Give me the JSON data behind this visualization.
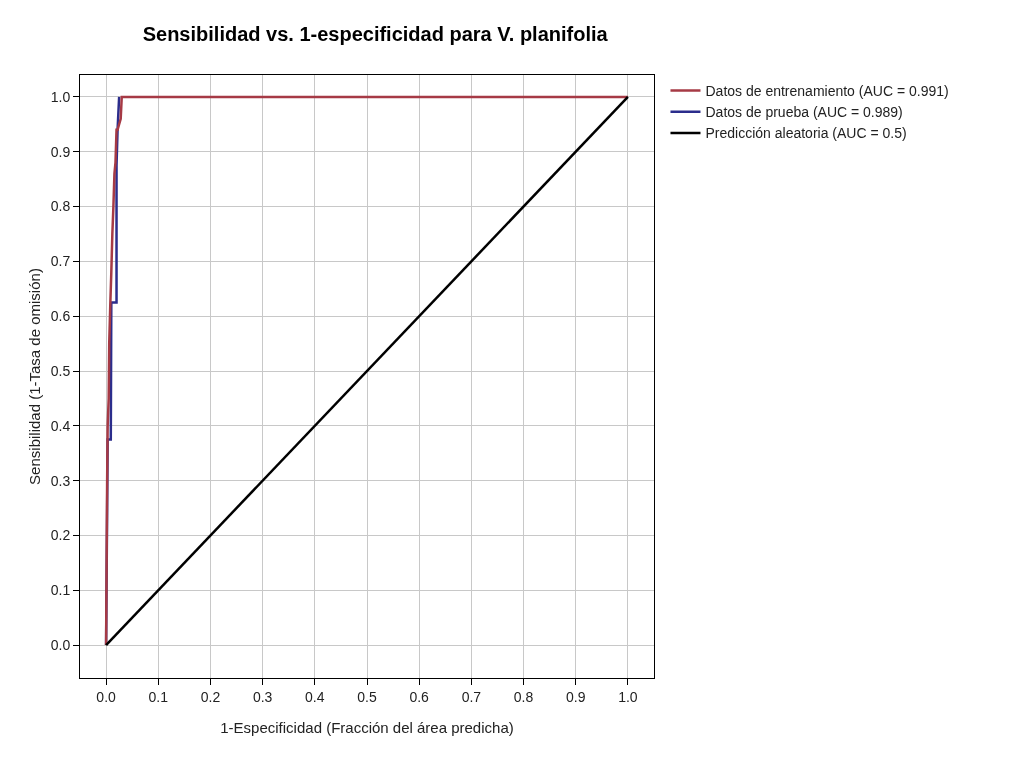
{
  "chart_data": {
    "type": "line",
    "title": "Sensibilidad vs. 1-especificidad para V. planifolia",
    "xlabel": "1-Especificidad (Fracción del área predicha)",
    "ylabel": "Sensibilidad (1-Tasa de omisión)",
    "series": [
      {
        "name": "Datos de entrenamiento (AUC = 0.991)",
        "color": "#a63a45",
        "x": [
          0,
          0.002,
          0.003,
          0.005,
          0.006,
          0.008,
          0.01,
          0.012,
          0.014,
          0.016,
          0.018,
          0.02,
          0.022,
          0.028,
          0.03,
          0.2,
          0.6,
          1.0
        ],
        "values": [
          0,
          0.3,
          0.4,
          0.45,
          0.55,
          0.62,
          0.68,
          0.75,
          0.8,
          0.86,
          0.88,
          0.94,
          0.94,
          0.96,
          1.0,
          1.0,
          1.0,
          1.0
        ]
      },
      {
        "name": "Datos de prueba (AUC = 0.989)",
        "color": "#2b2d8c",
        "x": [
          0,
          0.003,
          0.009,
          0.01,
          0.012,
          0.014,
          0.02,
          0.02,
          0.022,
          0.025
        ],
        "values": [
          0,
          0.375,
          0.375,
          0.625,
          0.625,
          0.625,
          0.625,
          0.875,
          0.94,
          1.0
        ]
      },
      {
        "name": "Predicción aleatoria (AUC = 0.5)",
        "color": "#000000",
        "x": [
          0,
          1.0
        ],
        "values": [
          0,
          1.0
        ]
      }
    ],
    "xlim": [
      -0.05,
      1.05
    ],
    "ylim": [
      -0.06,
      1.04
    ],
    "xticks": [
      {
        "value": 0,
        "label": "0.0"
      },
      0.1,
      0.2,
      0.3,
      0.4,
      0.5,
      0.6,
      0.7,
      0.8,
      0.9,
      {
        "value": 1,
        "label": "1.0"
      }
    ],
    "yticks": [
      {
        "value": 0,
        "label": "0.0"
      },
      0.1,
      0.2,
      0.3,
      0.4,
      0.5,
      0.6,
      0.7,
      0.8,
      0.9,
      {
        "value": 1,
        "label": "1.0"
      }
    ],
    "grid": true,
    "legend": "top right",
    "line_style": "solid"
  }
}
